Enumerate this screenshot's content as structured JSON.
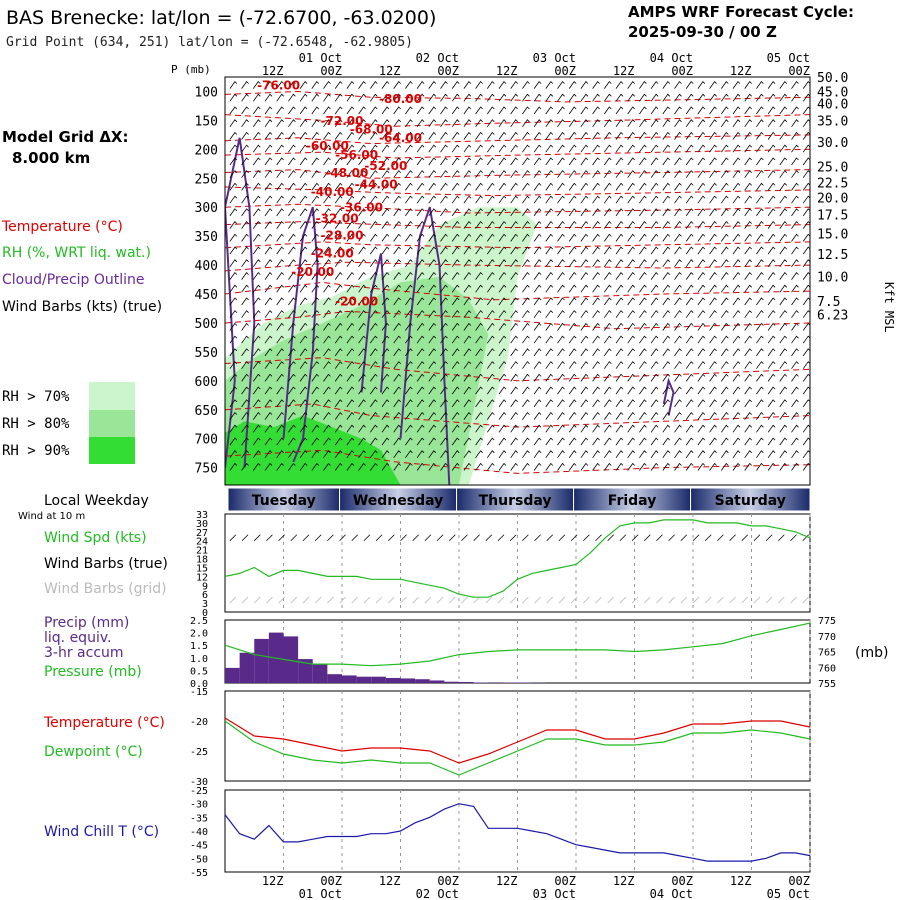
{
  "header": {
    "title": "BAS Brenecke:  lat/lon = (-72.6700, -63.0200)",
    "grid_point": "Grid Point (634, 251) lat/lon = (-72.6548, -62.9805)",
    "cycle_label": "AMPS WRF Forecast Cycle:",
    "cycle_value": "2025-09-30 / 00  Z"
  },
  "side": {
    "grid_label": "Model Grid ΔX:",
    "grid_value": "8.000 km",
    "legend_temperature": "Temperature (°C)",
    "legend_rh": "RH (%, WRT liq. wat.)",
    "legend_cloud": "Cloud/Precip Outline",
    "legend_wind": "Wind Barbs (kts) (true)",
    "rh70": "RH > 70%",
    "rh80": "RH > 80%",
    "rh90": "RH > 90%",
    "local_weekday": "Local Weekday",
    "wind_at": "Wind at 10 m",
    "wind_spd": "Wind Spd (kts)",
    "wind_barbs_true": "Wind Barbs (true)",
    "wind_barbs_grid": "Wind Barbs (grid)",
    "precip1": "Precip (mm)",
    "precip2": "liq. equiv.",
    "precip3": "3-hr accum",
    "pressure": "Pressure (mb)",
    "pressure_unit": "(mb)",
    "temperature": "Temperature (°C)",
    "dewpoint": "Dewpoint (°C)",
    "windchill": "Wind Chill T (°C)",
    "kft": "Kft MSL",
    "p_mb": "P (mb)"
  },
  "colors": {
    "temperature": "#dd0000",
    "dewpoint": "#22bb22",
    "precip": "#5a2a8a",
    "cloud": "#5a2a8a",
    "windchill": "#1a1aaa",
    "rh70": "#ccf5cc",
    "rh80": "#99e699",
    "rh90": "#33dd33",
    "barb_grid": "#bbbbbb"
  },
  "chart_data": [
    {
      "type": "heatmap",
      "panel": "cross-section",
      "y_title": "P (mb)",
      "y_right_title": "Kft MSL",
      "pressure_ticks": [
        100,
        150,
        200,
        250,
        300,
        350,
        400,
        450,
        500,
        550,
        600,
        650,
        700,
        750
      ],
      "kft_ticks": [
        "50.0",
        "45.0",
        "40.0",
        "35.0",
        "30.0",
        "25.0",
        "22.5",
        "20.0",
        "17.5",
        "15.0",
        "12.5",
        "10.0",
        "7.5",
        "6.23"
      ],
      "kft_pressure": [
        75,
        100,
        121,
        150,
        187,
        230,
        257,
        283,
        313,
        345,
        381,
        420,
        462,
        485
      ],
      "time_ticks_top": [
        "12Z",
        "00Z",
        "12Z",
        "00Z",
        "12Z",
        "00Z",
        "12Z",
        "00Z",
        "12Z",
        "00Z"
      ],
      "date_ticks": [
        "01 Oct",
        "02 Oct",
        "03 Oct",
        "04 Oct",
        "05 Oct"
      ],
      "temperature_labels": [
        {
          "text": "-76.00",
          "t": 11,
          "p": 97
        },
        {
          "text": "-80.00",
          "t": 36,
          "p": 120
        },
        {
          "text": "-72.00",
          "t": 24,
          "p": 158
        },
        {
          "text": "-68.00",
          "t": 30,
          "p": 173
        },
        {
          "text": "-64.00",
          "t": 36,
          "p": 187
        },
        {
          "text": "-60.00",
          "t": 21,
          "p": 201
        },
        {
          "text": "-56.00",
          "t": 27,
          "p": 217
        },
        {
          "text": "-52.00",
          "t": 33,
          "p": 236
        },
        {
          "text": "-48.00",
          "t": 25,
          "p": 248
        },
        {
          "text": "-44.00",
          "t": 31,
          "p": 268
        },
        {
          "text": "-40.00",
          "t": 22,
          "p": 281
        },
        {
          "text": "-36.00",
          "t": 28,
          "p": 307
        },
        {
          "text": "-32.00",
          "t": 23,
          "p": 326
        },
        {
          "text": "-28.00",
          "t": 24,
          "p": 356
        },
        {
          "text": "-24.00",
          "t": 22,
          "p": 387
        },
        {
          "text": "-20.00",
          "t": 18,
          "p": 419
        },
        {
          "text": "-20.00",
          "t": 27,
          "p": 470
        }
      ],
      "weekdays": [
        "Tuesday",
        "Wednesday",
        "Thursday",
        "Friday",
        "Saturday"
      ]
    },
    {
      "type": "line",
      "panel": "wind",
      "x_hours": [
        0,
        3,
        6,
        9,
        12,
        15,
        18,
        21,
        24,
        27,
        30,
        33,
        36,
        39,
        42,
        45,
        48,
        51,
        54,
        57,
        60,
        63,
        66,
        69,
        72,
        75,
        78,
        81,
        84,
        87,
        90,
        93,
        96,
        99,
        102,
        105,
        108,
        111,
        114,
        117,
        120
      ],
      "series": [
        {
          "name": "Wind Spd (kts)",
          "values": [
            12,
            13,
            15,
            12,
            14,
            14,
            13,
            12,
            12,
            12,
            11,
            11,
            11,
            10,
            9,
            8,
            6,
            5,
            5,
            7,
            11,
            13,
            14,
            15,
            16,
            20,
            25,
            29,
            30,
            30,
            31,
            31,
            31,
            30,
            30,
            30,
            29,
            29,
            28,
            27,
            25
          ]
        }
      ],
      "y_ticks": [
        0,
        3,
        6,
        9,
        12,
        15,
        18,
        21,
        24,
        27,
        30,
        33
      ],
      "ylim": [
        0,
        33
      ]
    },
    {
      "type": "bar",
      "panel": "precip",
      "x_hours": [
        0,
        3,
        6,
        9,
        12,
        15,
        18,
        21,
        24,
        27,
        30,
        33,
        36,
        39,
        42,
        45,
        48,
        51,
        54,
        57,
        60,
        63,
        66,
        69,
        72,
        75,
        78,
        81,
        84,
        87,
        90,
        93,
        96,
        99,
        102,
        105,
        108,
        111,
        114,
        117
      ],
      "values": [
        0.6,
        1.2,
        1.75,
        2.0,
        1.85,
        0.95,
        0.75,
        0.35,
        0.3,
        0.25,
        0.25,
        0.2,
        0.18,
        0.15,
        0.1,
        0.05,
        0.04,
        0.02,
        0.01,
        0.02,
        0.02,
        0.01,
        0,
        0,
        0,
        0,
        0,
        0,
        0,
        0,
        0,
        0,
        0,
        0,
        0,
        0,
        0,
        0,
        0,
        0
      ],
      "y_ticks": [
        0.0,
        0.5,
        1.0,
        1.5,
        2.0,
        2.5
      ],
      "ylim": [
        0,
        2.5
      ],
      "pressure_series": {
        "name": "Pressure (mb)",
        "x_hours": [
          0,
          6,
          12,
          18,
          24,
          30,
          36,
          42,
          48,
          54,
          60,
          66,
          72,
          78,
          84,
          90,
          96,
          102,
          108,
          114,
          120
        ],
        "values": [
          767,
          764,
          762.5,
          761,
          761,
          760.5,
          761,
          762,
          764,
          765,
          765.5,
          765.5,
          765.5,
          765.5,
          765,
          765.5,
          766.5,
          767.5,
          770,
          772,
          774
        ]
      },
      "y2_ticks": [
        755,
        760,
        765,
        770,
        775
      ],
      "y2lim": [
        755,
        775
      ]
    },
    {
      "type": "line",
      "panel": "temperature",
      "x_hours": [
        0,
        6,
        12,
        18,
        24,
        30,
        36,
        42,
        48,
        54,
        60,
        66,
        72,
        78,
        84,
        90,
        96,
        102,
        108,
        114,
        120
      ],
      "series": [
        {
          "name": "Temperature (°C)",
          "values": [
            -19.5,
            -22.5,
            -23,
            -24,
            -25,
            -24.5,
            -24.5,
            -25,
            -27,
            -25.5,
            -23.5,
            -21.5,
            -21.5,
            -23,
            -23,
            -22,
            -20.5,
            -20.5,
            -20,
            -20,
            -21
          ]
        },
        {
          "name": "Dewpoint (°C)",
          "values": [
            -20,
            -23.5,
            -25.5,
            -26.5,
            -27,
            -26.5,
            -27,
            -27,
            -29,
            -27,
            -25,
            -23,
            -23,
            -24,
            -24,
            -23.5,
            -22,
            -22,
            -21.5,
            -22,
            -23
          ]
        }
      ],
      "y_ticks": [
        -15,
        -20,
        -25,
        -30
      ],
      "ylim": [
        -30,
        -15
      ]
    },
    {
      "type": "line",
      "panel": "windchill",
      "x_hours": [
        0,
        3,
        6,
        9,
        12,
        15,
        18,
        21,
        24,
        27,
        30,
        33,
        36,
        39,
        42,
        45,
        48,
        51,
        54,
        57,
        60,
        63,
        66,
        69,
        72,
        75,
        78,
        81,
        84,
        87,
        90,
        93,
        96,
        99,
        102,
        105,
        108,
        111,
        114,
        117,
        120
      ],
      "series": [
        {
          "name": "Wind Chill T (°C)",
          "values": [
            -34,
            -41,
            -43,
            -38,
            -44,
            -44,
            -43,
            -42,
            -42,
            -42,
            -41,
            -41,
            -40,
            -37,
            -35,
            -32,
            -30,
            -31,
            -39,
            -39,
            -39,
            -40,
            -41,
            -43,
            -45,
            -46,
            -47,
            -48,
            -48,
            -48,
            -48,
            -49,
            -50,
            -51,
            -51,
            -51,
            -51,
            -50,
            -48,
            -48,
            -49
          ]
        }
      ],
      "y_ticks": [
        -25,
        -30,
        -35,
        -40,
        -45,
        -50,
        -55
      ],
      "ylim": [
        -55,
        -25
      ]
    }
  ],
  "bottom_axis": {
    "times": [
      "12Z",
      "00Z",
      "12Z",
      "00Z",
      "12Z",
      "00Z",
      "12Z",
      "00Z",
      "12Z",
      "00Z"
    ],
    "dates": [
      "01 Oct",
      "02 Oct",
      "03 Oct",
      "04 Oct",
      "05 Oct"
    ]
  }
}
